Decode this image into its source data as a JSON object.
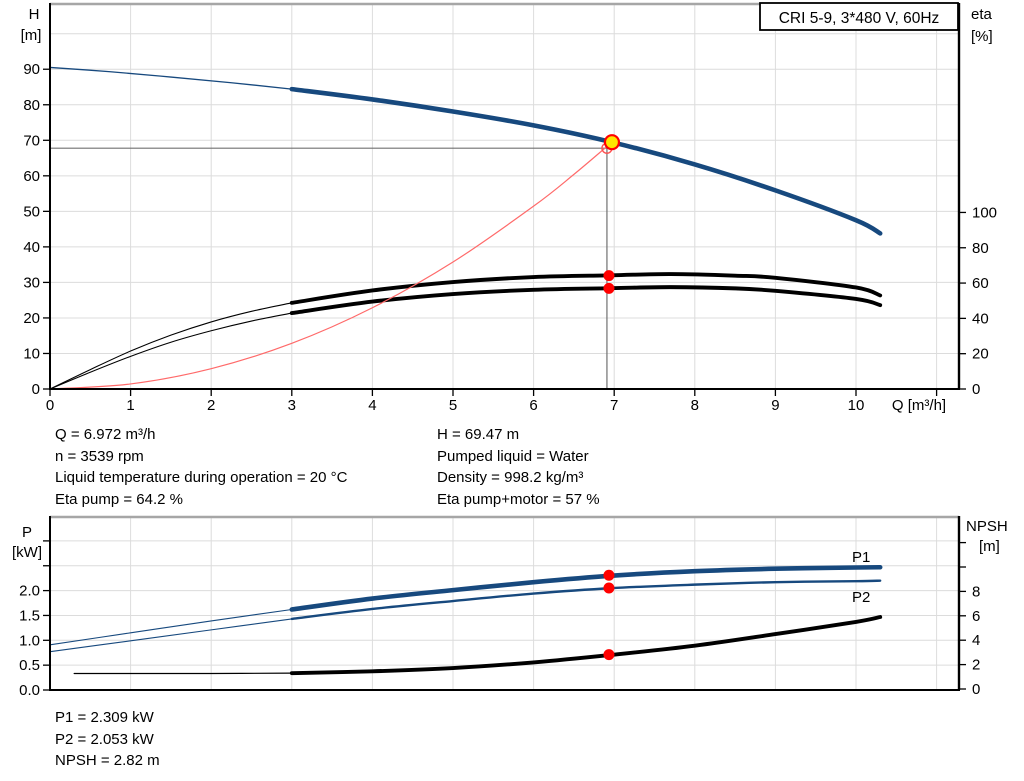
{
  "colors": {
    "curve_blue": "#17497E",
    "curve_black": "#000000",
    "system_red": "#FF6A6A",
    "marker_red": "#FF0000",
    "marker_yellow": "#FFE600",
    "open_circle_red": "#FF5050",
    "grid": "#DCDCDC",
    "crosshair": "#707070",
    "right_axis_label_blue": "#1F4E9C",
    "border_gray": "#A6A6A6"
  },
  "chart_data": [
    {
      "type": "line",
      "title": "CRI 5-9, 3*480 V, 60Hz",
      "xlabel": "Q [m³/h]",
      "axis_titles": {
        "left": [
          "H",
          "[m]"
        ],
        "right": [
          "eta",
          "[%]"
        ]
      },
      "xlim": [
        0,
        11.3
      ],
      "ylim_left": [
        0,
        108
      ],
      "ylim_right": [
        0,
        218
      ],
      "grid": true,
      "x_ticks": [
        0,
        1,
        2,
        3,
        4,
        5,
        6,
        7,
        8,
        9,
        10
      ],
      "x_ticks_unlabeled": [
        11
      ],
      "y_ticks_left": [
        0,
        10,
        20,
        30,
        40,
        50,
        60,
        70,
        80,
        90
      ],
      "y_ticks_right": [
        0,
        20,
        40,
        60,
        80,
        100
      ],
      "series": [
        {
          "name": "head-curve-low-flow",
          "axis": "left",
          "style": "thin_blue",
          "points": [
            [
              0,
              90.5
            ],
            [
              0.75,
              89.3
            ],
            [
              1.5,
              87.8
            ],
            [
              2.25,
              86.2
            ],
            [
              3,
              84.4
            ]
          ]
        },
        {
          "name": "head-curve",
          "axis": "left",
          "style": "thick_blue",
          "points": [
            [
              3,
              84.4
            ],
            [
              4,
              81.5
            ],
            [
              5,
              78.1
            ],
            [
              6,
              74.2
            ],
            [
              6.972,
              69.47
            ],
            [
              8,
              63.2
            ],
            [
              9,
              55.9
            ],
            [
              10,
              47.5
            ],
            [
              10.3,
              43.8
            ]
          ]
        },
        {
          "name": "eta-pump-low-flow",
          "axis": "right",
          "style": "thin_black",
          "points": [
            [
              0,
              0
            ],
            [
              0.5,
              11
            ],
            [
              1,
              21.5
            ],
            [
              1.5,
              30.5
            ],
            [
              2,
              38
            ],
            [
              2.5,
              44
            ],
            [
              3,
              48.8
            ]
          ]
        },
        {
          "name": "eta-pump",
          "axis": "right",
          "style": "thick_black",
          "points": [
            [
              3,
              48.8
            ],
            [
              4,
              55.8
            ],
            [
              5,
              60.6
            ],
            [
              6,
              63.4
            ],
            [
              6.972,
              64.4
            ],
            [
              7.7,
              65.1
            ],
            [
              8.5,
              64.2
            ],
            [
              9,
              63
            ],
            [
              10,
              57.5
            ],
            [
              10.3,
              53
            ]
          ]
        },
        {
          "name": "eta-pump-motor-low-flow",
          "axis": "right",
          "style": "thin_black",
          "points": [
            [
              0,
              0
            ],
            [
              0.5,
              9.5
            ],
            [
              1,
              18.5
            ],
            [
              1.5,
              26.5
            ],
            [
              2,
              33
            ],
            [
              2.5,
              38.5
            ],
            [
              3,
              43
            ]
          ]
        },
        {
          "name": "eta-pump-motor",
          "axis": "right",
          "style": "thick_black",
          "points": [
            [
              3,
              43
            ],
            [
              4,
              49.5
            ],
            [
              5,
              53.8
            ],
            [
              6,
              56.2
            ],
            [
              6.972,
              57.1
            ],
            [
              7.7,
              57.7
            ],
            [
              8.5,
              57
            ],
            [
              9,
              55.6
            ],
            [
              10,
              51
            ],
            [
              10.3,
              47.5
            ]
          ]
        },
        {
          "name": "system-curve",
          "axis": "left",
          "style": "thin_red",
          "points": [
            [
              0,
              0
            ],
            [
              1,
              1.43
            ],
            [
              2,
              5.72
            ],
            [
              3,
              12.86
            ],
            [
              4,
              22.87
            ],
            [
              5,
              35.74
            ],
            [
              6,
              51.46
            ],
            [
              6.5,
              60.4
            ],
            [
              6.972,
              69.47
            ]
          ]
        }
      ],
      "duty_point": {
        "Q": 6.972,
        "H": 69.47
      },
      "value_markers": [
        {
          "axis": "right",
          "Q": 6.972,
          "value": 64.2
        },
        {
          "axis": "right",
          "Q": 6.972,
          "value": 57
        }
      ]
    },
    {
      "type": "line",
      "axis_titles": {
        "left": [
          "P",
          "[kW]"
        ],
        "right": [
          "NPSH",
          "[m]"
        ]
      },
      "xlim": [
        0,
        11.28
      ],
      "ylim_left": [
        0,
        3.48
      ],
      "ylim_right": [
        0,
        14.2
      ],
      "grid": true,
      "y_ticks_left": [
        [
          0,
          "0.0"
        ],
        [
          0.5,
          "0.5"
        ],
        [
          1,
          "1.0"
        ],
        [
          1.5,
          "1.5"
        ],
        [
          2,
          "2.0"
        ]
      ],
      "y_ticks_left_unlabeled": [
        2.5,
        3
      ],
      "y_ticks_right": [
        0,
        2,
        4,
        6,
        8
      ],
      "y_ticks_right_unlabeled": [
        10,
        12
      ],
      "series": [
        {
          "name": "P1-low-flow",
          "axis": "left",
          "style": "thin_blue2",
          "points": [
            [
              0,
              0.91
            ],
            [
              1,
              1.15
            ],
            [
              2,
              1.39
            ],
            [
              3,
              1.62
            ]
          ]
        },
        {
          "name": "P1",
          "axis": "left",
          "style": "thick_blue",
          "label": "P1",
          "points": [
            [
              3,
              1.62
            ],
            [
              4,
              1.84
            ],
            [
              5,
              2.01
            ],
            [
              6,
              2.17
            ],
            [
              6.972,
              2.3
            ],
            [
              8,
              2.39
            ],
            [
              9,
              2.44
            ],
            [
              10,
              2.465
            ],
            [
              10.3,
              2.47
            ]
          ]
        },
        {
          "name": "P2-low-flow",
          "axis": "left",
          "style": "thin_blue2",
          "points": [
            [
              0,
              0.77
            ],
            [
              1,
              0.99
            ],
            [
              2,
              1.21
            ],
            [
              3,
              1.43
            ]
          ]
        },
        {
          "name": "P2",
          "axis": "left",
          "style": "blue2",
          "label": "P2",
          "points": [
            [
              3,
              1.43
            ],
            [
              4,
              1.63
            ],
            [
              5,
              1.79
            ],
            [
              6,
              1.94
            ],
            [
              6.972,
              2.05
            ],
            [
              8,
              2.12
            ],
            [
              9,
              2.17
            ],
            [
              10,
              2.19
            ],
            [
              10.3,
              2.2
            ]
          ]
        },
        {
          "name": "NPSH-low-flow",
          "axis": "right",
          "style": "npsh_thin",
          "points": [
            [
              0.3,
              1.27
            ],
            [
              1,
              1.27
            ],
            [
              2,
              1.27
            ],
            [
              3,
              1.3
            ]
          ]
        },
        {
          "name": "NPSH",
          "axis": "right",
          "style": "thick_black",
          "points": [
            [
              3,
              1.3
            ],
            [
              4,
              1.45
            ],
            [
              5,
              1.72
            ],
            [
              6,
              2.18
            ],
            [
              6.972,
              2.8
            ],
            [
              8,
              3.55
            ],
            [
              9,
              4.5
            ],
            [
              10,
              5.5
            ],
            [
              10.3,
              5.9
            ]
          ]
        }
      ],
      "value_markers": [
        {
          "axis": "left",
          "Q": 6.972,
          "value": 2.309
        },
        {
          "axis": "left",
          "Q": 6.972,
          "value": 2.053
        },
        {
          "axis": "right",
          "Q": 6.972,
          "value": 2.82
        }
      ]
    }
  ],
  "annotations": {
    "duty_info_left": [
      "Q = 6.972 m³/h",
      "n = 3539 rpm",
      "Liquid temperature during operation = 20 °C",
      "Eta pump = 64.2 %"
    ],
    "duty_info_right": [
      "H = 69.47 m",
      "Pumped liquid = Water",
      "Density = 998.2 kg/m³",
      "Eta pump+motor = 57 %"
    ],
    "power_info": [
      "P1 = 2.309 kW",
      "P2 = 2.053 kW",
      "NPSH = 2.82 m"
    ]
  }
}
